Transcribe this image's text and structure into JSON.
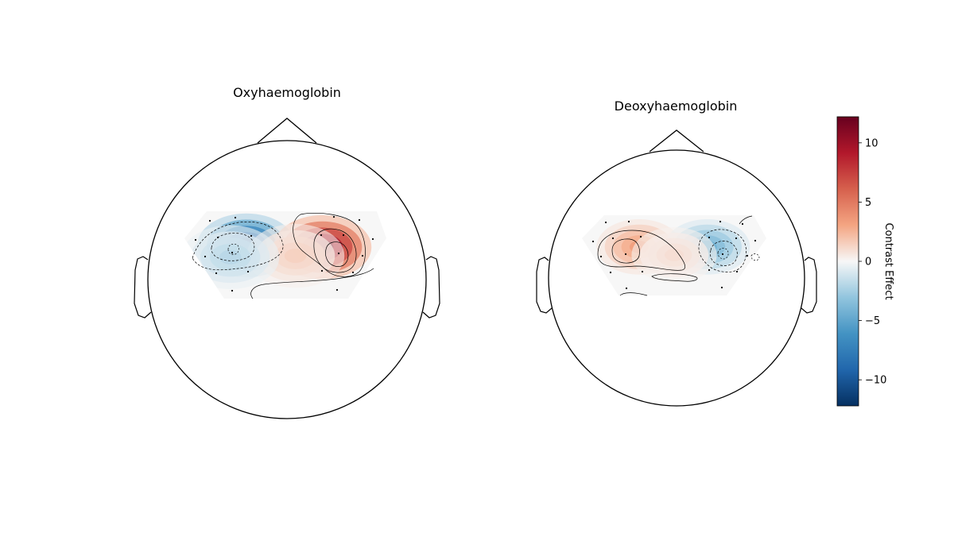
{
  "chart_data": [
    {
      "type": "heatmap",
      "title": "Oxyhaemoglobin",
      "blobs": [
        {
          "u": -0.39,
          "v": 0.22,
          "value": -11.5
        },
        {
          "u": 0.37,
          "v": 0.18,
          "value": 12.0
        },
        {
          "u": 0.1,
          "v": -0.02,
          "value": 1.5
        },
        {
          "u": -0.55,
          "v": -0.05,
          "value": -2.0
        }
      ]
    },
    {
      "type": "heatmap",
      "title": "Deoxyhaemoglobin",
      "blobs": [
        {
          "u": -0.38,
          "v": 0.2,
          "value": 3.5
        },
        {
          "u": 0.36,
          "v": 0.2,
          "value": -4.5
        },
        {
          "u": 0.0,
          "v": 0.0,
          "value": 1.0
        }
      ]
    }
  ],
  "colorbar": {
    "label": "Contrast Effect",
    "colormap": "RdBu_r",
    "vmin": -12.2,
    "vmax": 12.2,
    "ticks": [
      {
        "value": 10,
        "label": "10"
      },
      {
        "value": 5,
        "label": "5"
      },
      {
        "value": 0,
        "label": "0"
      },
      {
        "value": -5,
        "label": "−5"
      },
      {
        "value": -10,
        "label": "−10"
      }
    ]
  },
  "colors": {
    "neg_extreme": "#053061",
    "neg_mid": "#4393c3",
    "neutral": "#f7f7f7",
    "pos_mid": "#f4a582",
    "pos_extreme": "#67001f",
    "outline": "#000000"
  }
}
